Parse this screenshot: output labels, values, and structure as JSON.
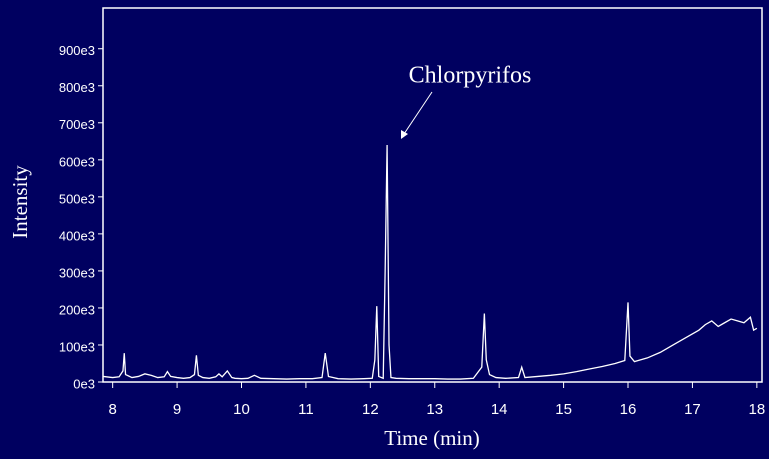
{
  "chart_data": {
    "type": "line",
    "xlabel": "Time (min)",
    "ylabel": "Intensity",
    "annotation": "Chlorpyrifos",
    "color": "#ffffff",
    "background": "#000060",
    "x": [
      7.85,
      8.0,
      8.1,
      8.16,
      8.18,
      8.2,
      8.3,
      8.4,
      8.5,
      8.6,
      8.7,
      8.8,
      8.85,
      8.9,
      9.0,
      9.1,
      9.2,
      9.27,
      9.3,
      9.33,
      9.4,
      9.5,
      9.6,
      9.65,
      9.7,
      9.78,
      9.85,
      9.9,
      10.0,
      10.1,
      10.2,
      10.3,
      10.5,
      10.7,
      10.9,
      11.1,
      11.25,
      11.3,
      11.35,
      11.5,
      11.7,
      11.9,
      12.03,
      12.07,
      12.1,
      12.13,
      12.2,
      12.23,
      12.26,
      12.29,
      12.32,
      12.4,
      12.6,
      12.8,
      13.0,
      13.2,
      13.4,
      13.6,
      13.73,
      13.77,
      13.8,
      13.85,
      13.95,
      14.1,
      14.3,
      14.35,
      14.4,
      14.6,
      14.8,
      15.0,
      15.2,
      15.4,
      15.6,
      15.8,
      15.95,
      16.0,
      16.03,
      16.1,
      16.3,
      16.5,
      16.7,
      16.9,
      17.1,
      17.2,
      17.3,
      17.4,
      17.5,
      17.6,
      17.7,
      17.8,
      17.9,
      17.95,
      18.0
    ],
    "values": [
      15000,
      12000,
      14000,
      30000,
      78000,
      20000,
      12000,
      15000,
      22000,
      18000,
      12000,
      14000,
      28000,
      15000,
      12000,
      10000,
      12000,
      20000,
      72000,
      18000,
      12000,
      10000,
      14000,
      22000,
      14000,
      30000,
      12000,
      10000,
      9000,
      10000,
      18000,
      10000,
      9000,
      8000,
      9000,
      9000,
      12000,
      78000,
      15000,
      9000,
      8000,
      9000,
      10000,
      60000,
      205000,
      15000,
      10000,
      300000,
      640000,
      100000,
      12000,
      10000,
      9000,
      9000,
      9000,
      8000,
      8000,
      10000,
      40000,
      185000,
      60000,
      20000,
      12000,
      10000,
      12000,
      40000,
      12000,
      15000,
      18000,
      22000,
      28000,
      35000,
      42000,
      50000,
      58000,
      215000,
      70000,
      55000,
      65000,
      80000,
      100000,
      120000,
      140000,
      155000,
      165000,
      150000,
      160000,
      170000,
      165000,
      160000,
      175000,
      140000,
      145000
    ],
    "xlim": [
      7.85,
      18.08
    ],
    "ylim": [
      0,
      1010000
    ],
    "xticks": [
      8,
      9,
      10,
      11,
      12,
      13,
      14,
      15,
      16,
      17,
      18
    ],
    "yticks": [
      {
        "value": 0,
        "label": "0e3"
      },
      {
        "value": 100000,
        "label": "100e3"
      },
      {
        "value": 200000,
        "label": "200e3"
      },
      {
        "value": 300000,
        "label": "300e3"
      },
      {
        "value": 400000,
        "label": "400e3"
      },
      {
        "value": 500000,
        "label": "500e3"
      },
      {
        "value": 600000,
        "label": "600e3"
      },
      {
        "value": 700000,
        "label": "700e3"
      },
      {
        "value": 800000,
        "label": "800e3"
      },
      {
        "value": 900000,
        "label": "900e3"
      }
    ]
  }
}
